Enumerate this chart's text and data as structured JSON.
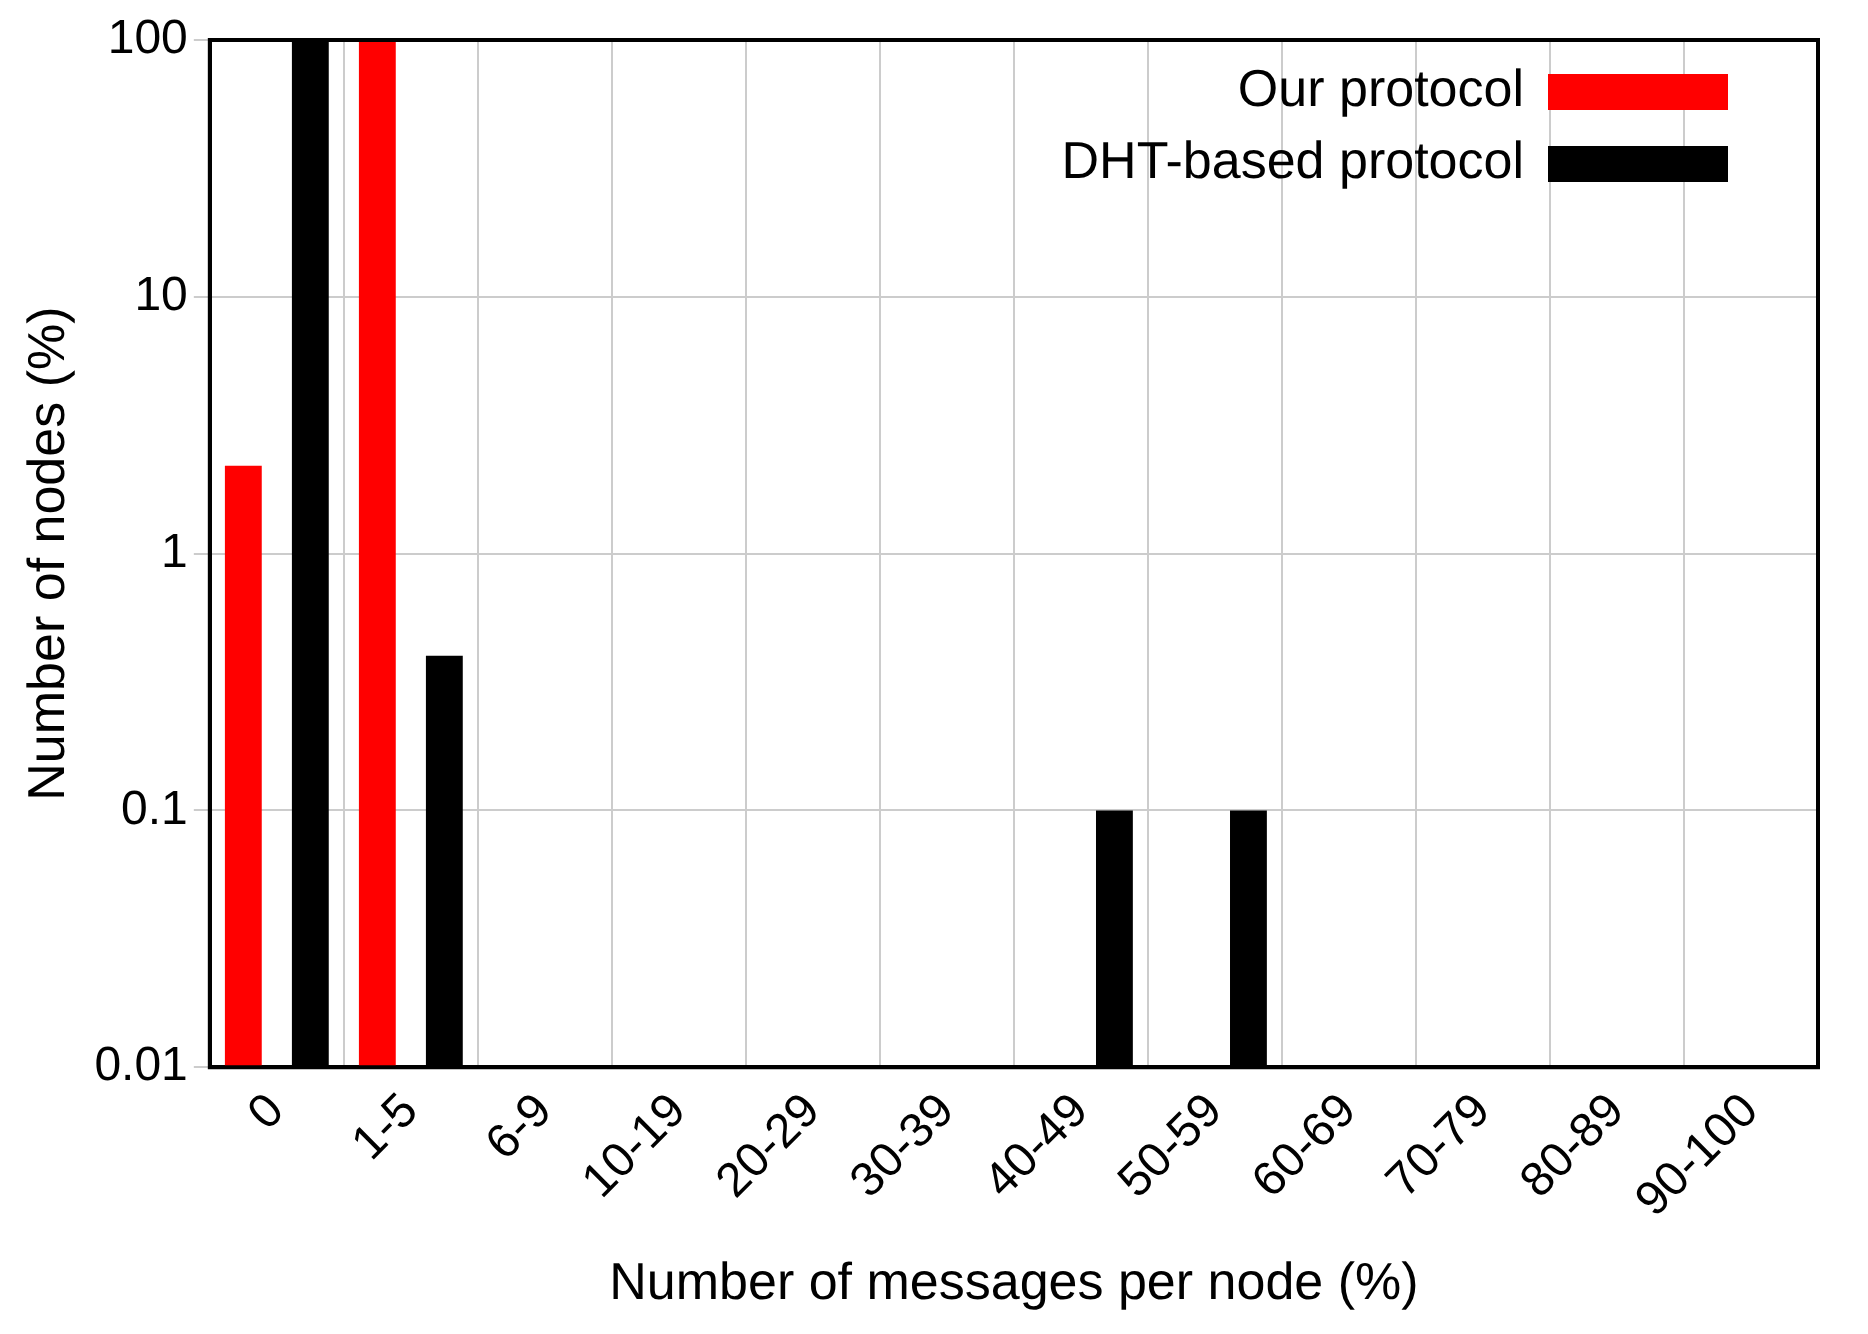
{
  "chart_data": {
    "type": "bar",
    "xlabel": "Number of messages per node (%)",
    "ylabel": "Number of nodes (%)",
    "categories": [
      "0",
      "1-5",
      "6-9",
      "10-19",
      "20-29",
      "30-39",
      "40-49",
      "50-59",
      "60-69",
      "70-79",
      "80-89",
      "90-100"
    ],
    "series": [
      {
        "name": "Our protocol",
        "color": "#ff0000",
        "values": [
          2.2,
          100,
          null,
          null,
          null,
          null,
          null,
          null,
          null,
          null,
          null,
          null
        ]
      },
      {
        "name": "DHT-based protocol",
        "color": "#000000",
        "values": [
          100,
          0.4,
          null,
          null,
          null,
          null,
          0.1,
          0.1,
          null,
          null,
          null,
          null
        ]
      }
    ],
    "log": "y",
    "ylim": [
      0.01,
      100
    ],
    "yticks": [
      0.01,
      0.1,
      1,
      10,
      100
    ],
    "grid": true,
    "legend": "top right"
  }
}
